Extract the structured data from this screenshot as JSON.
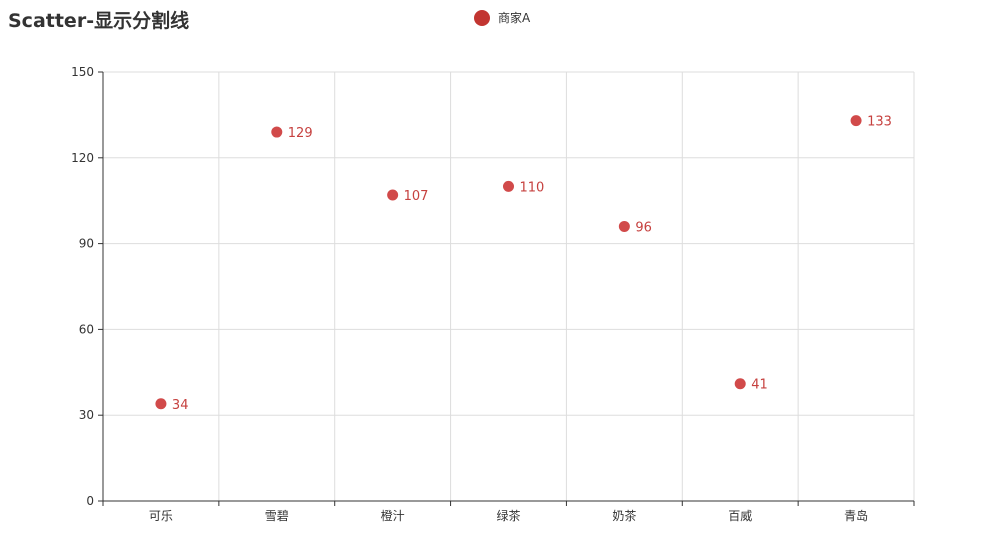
{
  "chart_data": {
    "type": "scatter",
    "title": "Scatter-显示分割线",
    "categories": [
      "可乐",
      "雪碧",
      "橙汁",
      "绿茶",
      "奶茶",
      "百威",
      "青岛"
    ],
    "series": [
      {
        "name": "商家A",
        "values": [
          34,
          129,
          107,
          110,
          96,
          41,
          133
        ],
        "color": "#c23531"
      }
    ],
    "ylim": [
      0,
      150
    ],
    "yticks": [
      0,
      30,
      60,
      90,
      120,
      150
    ],
    "xlabel": "",
    "ylabel": "",
    "grid": true,
    "legend_position": "top-center",
    "label_position": "right"
  }
}
